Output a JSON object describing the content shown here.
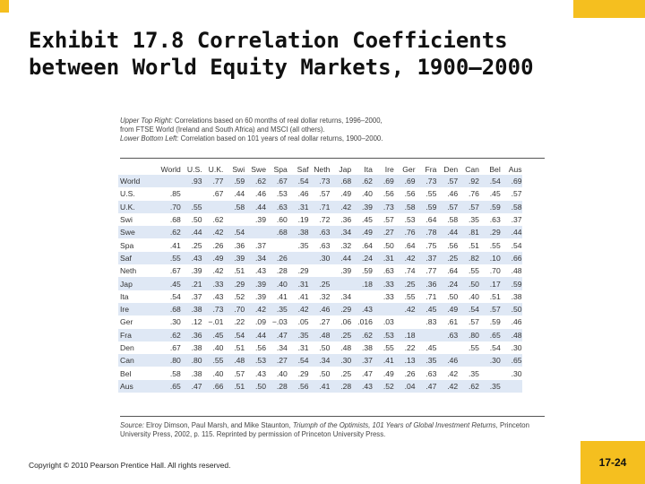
{
  "slide": {
    "title": "Exhibit 17.8  Correlation Coefficients between World Equity Markets, 1900–2000",
    "copyright": "Copyright © 2010 Pearson Prentice Hall. All rights reserved.",
    "page_number": "17-24",
    "accent_color": "#f5bf1f"
  },
  "exhibit": {
    "note_upper_label": "Upper Top Right:",
    "note_upper_text": " Correlations based on 60 months of real dollar returns, 1996–2000,",
    "note_upper_text2": "from FTSE World (Ireland and South Africa) and MSCI (all others).",
    "note_lower_label": "Lower Bottom Left:",
    "note_lower_text": " Correlation based on 101 years of real dollar returns, 1900–2000.",
    "source_label": "Source:",
    "source_text1": " Elroy Dimson, Paul Marsh, and Mike Staunton, ",
    "source_book": "Triumph of the Optimists, 101 Years of Global Investment Returns,",
    "source_text2": " Princeton University Press, 2002, p. 115. Reprinted by permission of Princeton University Press.",
    "columns": [
      "World",
      "U.S.",
      "U.K.",
      "Swi",
      "Swe",
      "Spa",
      "Saf",
      "Neth",
      "Jap",
      "Ita",
      "Ire",
      "Ger",
      "Fra",
      "Den",
      "Can",
      "Bel",
      "Aus"
    ],
    "rows": [
      {
        "label": "World",
        "values": [
          "",
          ".93",
          ".77",
          ".59",
          ".62",
          ".67",
          ".54",
          ".73",
          ".68",
          ".62",
          ".69",
          ".69",
          ".73",
          ".57",
          ".92",
          ".54",
          ".69"
        ]
      },
      {
        "label": "U.S.",
        "values": [
          ".85",
          "",
          ".67",
          ".44",
          ".46",
          ".53",
          ".46",
          ".57",
          ".49",
          ".40",
          ".56",
          ".56",
          ".55",
          ".46",
          ".76",
          ".45",
          ".57"
        ]
      },
      {
        "label": "U.K.",
        "values": [
          ".70",
          ".55",
          "",
          ".58",
          ".44",
          ".63",
          ".31",
          ".71",
          ".42",
          ".39",
          ".73",
          ".58",
          ".59",
          ".57",
          ".57",
          ".59",
          ".58"
        ]
      },
      {
        "label": "Swi",
        "values": [
          ".68",
          ".50",
          ".62",
          "",
          ".39",
          ".60",
          ".19",
          ".72",
          ".36",
          ".45",
          ".57",
          ".53",
          ".64",
          ".58",
          ".35",
          ".63",
          ".37"
        ]
      },
      {
        "label": "Swe",
        "values": [
          ".62",
          ".44",
          ".42",
          ".54",
          "",
          ".68",
          ".38",
          ".63",
          ".34",
          ".49",
          ".27",
          ".76",
          ".78",
          ".44",
          ".81",
          ".29",
          ".44"
        ]
      },
      {
        "label": "Spa",
        "values": [
          ".41",
          ".25",
          ".26",
          ".36",
          ".37",
          "",
          ".35",
          ".63",
          ".32",
          ".64",
          ".50",
          ".64",
          ".75",
          ".56",
          ".51",
          ".55",
          ".54"
        ]
      },
      {
        "label": "Saf",
        "values": [
          ".55",
          ".43",
          ".49",
          ".39",
          ".34",
          ".26",
          "",
          ".30",
          ".44",
          ".24",
          ".31",
          ".42",
          ".37",
          ".25",
          ".82",
          ".10",
          ".66"
        ]
      },
      {
        "label": "Neth",
        "values": [
          ".67",
          ".39",
          ".42",
          ".51",
          ".43",
          ".28",
          ".29",
          "",
          ".39",
          ".59",
          ".63",
          ".74",
          ".77",
          ".64",
          ".55",
          ".70",
          ".48"
        ]
      },
      {
        "label": "Jap",
        "values": [
          ".45",
          ".21",
          ".33",
          ".29",
          ".39",
          ".40",
          ".31",
          ".25",
          "",
          ".18",
          ".33",
          ".25",
          ".36",
          ".24",
          ".50",
          ".17",
          ".59"
        ]
      },
      {
        "label": "Ita",
        "values": [
          ".54",
          ".37",
          ".43",
          ".52",
          ".39",
          ".41",
          ".41",
          ".32",
          ".34",
          "",
          ".33",
          ".55",
          ".71",
          ".50",
          ".40",
          ".51",
          ".38"
        ]
      },
      {
        "label": "Ire",
        "values": [
          ".68",
          ".38",
          ".73",
          ".70",
          ".42",
          ".35",
          ".42",
          ".46",
          ".29",
          ".43",
          "",
          ".42",
          ".45",
          ".49",
          ".54",
          ".57",
          ".50"
        ]
      },
      {
        "label": "Ger",
        "values": [
          ".30",
          ".12",
          "−.01",
          ".22",
          ".09",
          "−.03",
          ".05",
          ".27",
          ".06",
          ".016",
          ".03",
          "",
          ".83",
          ".61",
          ".57",
          ".59",
          ".46"
        ]
      },
      {
        "label": "Fra",
        "values": [
          ".62",
          ".36",
          ".45",
          ".54",
          ".44",
          ".47",
          ".35",
          ".48",
          ".25",
          ".62",
          ".53",
          ".18",
          "",
          ".63",
          ".80",
          ".65",
          ".48"
        ]
      },
      {
        "label": "Den",
        "values": [
          ".67",
          ".38",
          ".40",
          ".51",
          ".56",
          ".34",
          ".31",
          ".50",
          ".48",
          ".38",
          ".55",
          ".22",
          ".45",
          "",
          ".55",
          ".54",
          ".30"
        ]
      },
      {
        "label": "Can",
        "values": [
          ".80",
          ".80",
          ".55",
          ".48",
          ".53",
          ".27",
          ".54",
          ".34",
          ".30",
          ".37",
          ".41",
          ".13",
          ".35",
          ".46",
          "",
          ".30",
          ".65"
        ]
      },
      {
        "label": "Bel",
        "values": [
          ".58",
          ".38",
          ".40",
          ".57",
          ".43",
          ".40",
          ".29",
          ".50",
          ".25",
          ".47",
          ".49",
          ".26",
          ".63",
          ".42",
          ".35",
          "",
          ".30"
        ]
      },
      {
        "label": "Aus",
        "values": [
          ".65",
          ".47",
          ".66",
          ".51",
          ".50",
          ".28",
          ".56",
          ".41",
          ".28",
          ".43",
          ".52",
          ".04",
          ".47",
          ".42",
          ".62",
          ".35",
          ""
        ]
      }
    ]
  }
}
